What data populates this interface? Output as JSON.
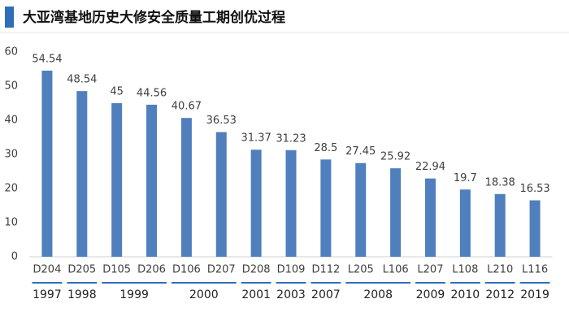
{
  "chart_data": {
    "type": "bar",
    "title": "大亚湾基地历史大修安全质量工期创优过程",
    "categories": [
      "D204",
      "D205",
      "D105",
      "D206",
      "D106",
      "D207",
      "D208",
      "D109",
      "D112",
      "L205",
      "L106",
      "L207",
      "L108",
      "L210",
      "L116"
    ],
    "values": [
      54.54,
      48.54,
      45,
      44.56,
      40.67,
      36.53,
      31.37,
      31.23,
      28.5,
      27.45,
      25.92,
      22.94,
      19.7,
      18.38,
      16.53
    ],
    "groups": [
      {
        "label": "1997",
        "span": 1
      },
      {
        "label": "1998",
        "span": 1
      },
      {
        "label": "1999",
        "span": 2
      },
      {
        "label": "2000",
        "span": 2
      },
      {
        "label": "2001",
        "span": 1
      },
      {
        "label": "2003",
        "span": 1
      },
      {
        "label": "2007",
        "span": 1
      },
      {
        "label": "2008",
        "span": 2
      },
      {
        "label": "2009",
        "span": 1
      },
      {
        "label": "2010",
        "span": 1
      },
      {
        "label": "2012",
        "span": 1
      },
      {
        "label": "2019",
        "span": 1
      }
    ],
    "color": "#4f7fbc",
    "ylim": [
      0,
      60
    ],
    "yticks": [
      0,
      10,
      20,
      30,
      40,
      50,
      60
    ],
    "grid": false
  }
}
